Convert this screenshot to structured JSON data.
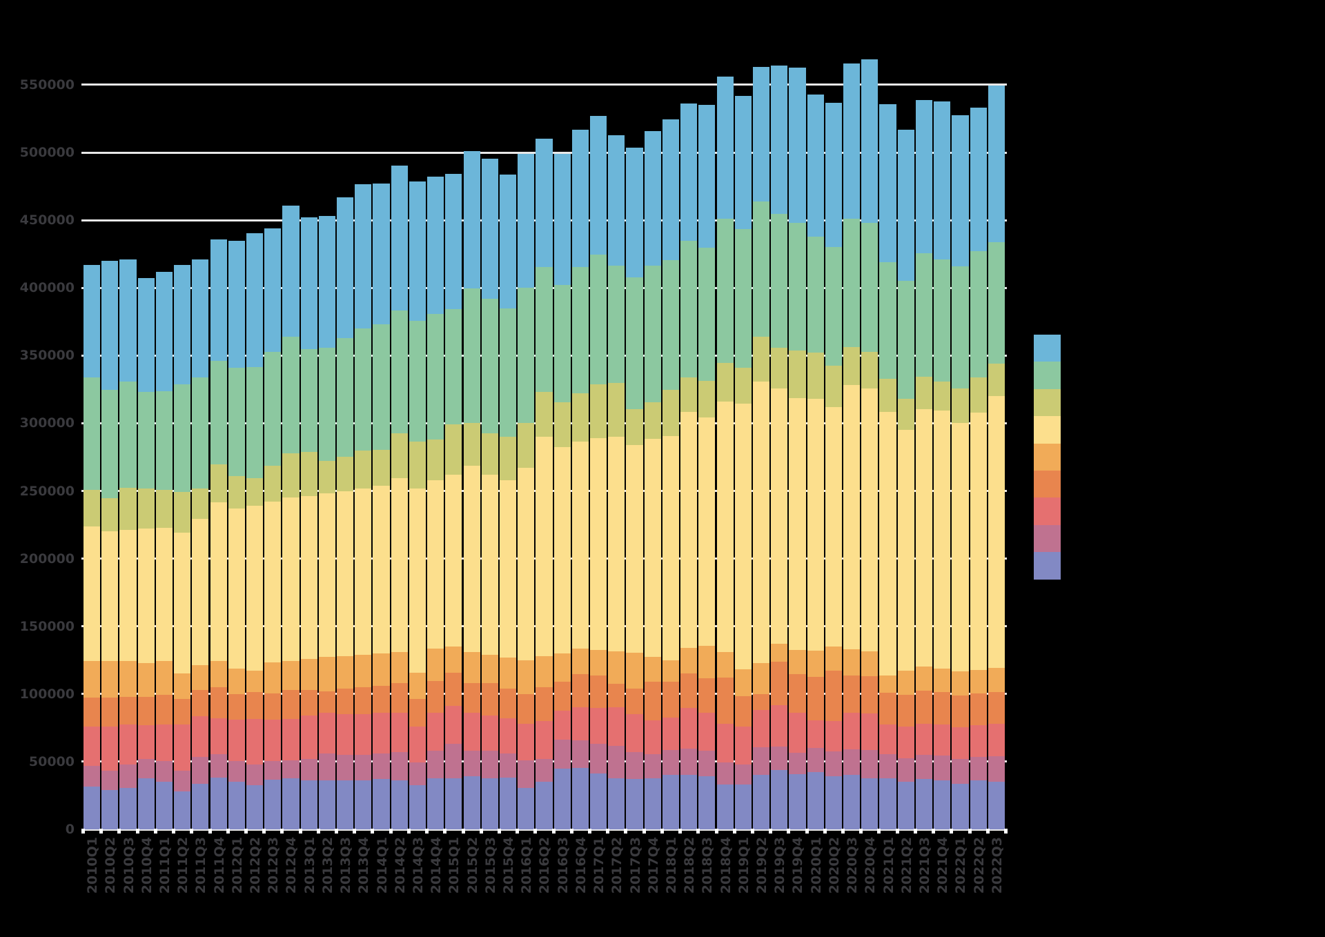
{
  "chart": {
    "title": "",
    "background_color": "#000000",
    "gridline_color": "#e8e8e8",
    "tick_label_color": "#3a3a3e",
    "axis_tick_color": "#ffffff",
    "legend": {
      "position": "right-center",
      "labels_visible": false,
      "swatch_order_top_to_bottom": [
        "blue",
        "green",
        "olive",
        "yellow",
        "orange",
        "dark-orange",
        "red",
        "mauve",
        "purple"
      ]
    }
  },
  "chart_data": {
    "type": "bar",
    "stacked": true,
    "title": "",
    "xlabel": "",
    "ylabel": "",
    "grid": "horizontal",
    "legend_position": "right-center",
    "legend_text_visible": false,
    "ylim": [
      0,
      577000
    ],
    "yticks": [
      0,
      50000,
      100000,
      150000,
      200000,
      250000,
      300000,
      350000,
      400000,
      450000,
      500000,
      550000
    ],
    "ytick_labels": [
      "0",
      "50000",
      "100000",
      "150000",
      "200000",
      "250000",
      "300000",
      "350000",
      "400000",
      "450000",
      "500000",
      "550000"
    ],
    "categories": [
      "2010Q1",
      "2010Q2",
      "2010Q3",
      "2010Q4",
      "2011Q1",
      "2011Q2",
      "2011Q3",
      "2011Q4",
      "2012Q1",
      "2012Q2",
      "2012Q3",
      "2012Q4",
      "2013Q1",
      "2013Q2",
      "2013Q3",
      "2013Q4",
      "2014Q1",
      "2014Q2",
      "2014Q3",
      "2014Q4",
      "2015Q1",
      "2015Q2",
      "2015Q3",
      "2015Q4",
      "2016Q1",
      "2016Q2",
      "2016Q3",
      "2016Q4",
      "2017Q1",
      "2017Q2",
      "2017Q3",
      "2017Q4",
      "2018Q1",
      "2018Q2",
      "2018Q3",
      "2018Q4",
      "2019Q1",
      "2019Q2",
      "2019Q3",
      "2019Q4",
      "2020Q1",
      "2020Q2",
      "2020Q3",
      "2020Q4",
      "2021Q1",
      "2021Q2",
      "2021Q3",
      "2021Q4",
      "2022Q1",
      "2022Q2",
      "2022Q3"
    ],
    "series_note": "series are unlabeled in the image (legend text not visible); names below are color identifiers, listed bottom-to-top of the stack",
    "series": [
      {
        "name": "series-1-purple",
        "color": "#8289c4",
        "values": [
          31600,
          29100,
          30700,
          37600,
          35000,
          28200,
          33500,
          38100,
          35000,
          32500,
          36700,
          37600,
          36000,
          36300,
          36000,
          36000,
          37000,
          36400,
          32500,
          37600,
          37900,
          39200,
          37500,
          38000,
          30700,
          35000,
          44900,
          45200,
          41400,
          37600,
          37000,
          37600,
          40100,
          40400,
          39200,
          33300,
          33000,
          40100,
          43800,
          40900,
          42100,
          39200,
          40100,
          37600,
          37600,
          35000,
          37000,
          36300,
          33600,
          36300,
          35300
        ]
      },
      {
        "name": "series-2-mauve",
        "color": "#bf7290",
        "values": [
          15300,
          14400,
          17100,
          14400,
          15500,
          15300,
          20200,
          17300,
          15300,
          15300,
          13600,
          13500,
          16000,
          19900,
          19000,
          19000,
          19000,
          20600,
          16900,
          20300,
          25100,
          18800,
          20500,
          18000,
          20300,
          17000,
          21500,
          20400,
          21600,
          24200,
          20100,
          17800,
          18300,
          19200,
          18700,
          16100,
          14800,
          20700,
          17500,
          15800,
          18000,
          18200,
          19000,
          20800,
          17800,
          17300,
          18000,
          18200,
          18400,
          17100,
          18700
        ]
      },
      {
        "name": "series-3-red",
        "color": "#e57070",
        "values": [
          28900,
          32300,
          29700,
          25000,
          27000,
          34000,
          29700,
          26600,
          30600,
          33900,
          30600,
          30600,
          32000,
          29800,
          30000,
          30000,
          30000,
          29000,
          26400,
          28100,
          28100,
          28000,
          26000,
          26000,
          27000,
          28000,
          21300,
          24600,
          26700,
          28400,
          28000,
          25100,
          24200,
          30100,
          28400,
          28400,
          28000,
          27200,
          30600,
          29600,
          20400,
          22600,
          27200,
          27200,
          22100,
          23800,
          22800,
          23000,
          23400,
          23700,
          23800
        ]
      },
      {
        "name": "series-4-dark-orange",
        "color": "#e8854e",
        "values": [
          21600,
          21500,
          20500,
          21000,
          22000,
          18700,
          19600,
          23000,
          19200,
          19600,
          19500,
          21300,
          19000,
          16100,
          19000,
          20000,
          20000,
          22100,
          20400,
          23800,
          24600,
          22000,
          24000,
          22000,
          22000,
          25000,
          21200,
          24300,
          23800,
          17400,
          18700,
          28400,
          26300,
          25500,
          25100,
          34200,
          22400,
          11900,
          31800,
          28200,
          32300,
          37400,
          27200,
          27600,
          23400,
          23100,
          24800,
          23800,
          23300,
          23300,
          23800
        ]
      },
      {
        "name": "series-5-orange",
        "color": "#f1ab58",
        "values": [
          26800,
          26900,
          26500,
          25000,
          24700,
          19000,
          18300,
          19200,
          18700,
          16100,
          22900,
          21200,
          23000,
          25500,
          24000,
          24000,
          24000,
          22900,
          19500,
          23700,
          19500,
          23000,
          21000,
          23000,
          25000,
          23000,
          21200,
          19000,
          19200,
          23800,
          26600,
          18700,
          16100,
          18700,
          24200,
          19000,
          20100,
          22900,
          13600,
          18200,
          19100,
          17800,
          19700,
          18300,
          12600,
          18200,
          17700,
          17300,
          17900,
          17500,
          17500
        ]
      },
      {
        "name": "series-6-yellow",
        "color": "#fcdf8d",
        "values": [
          99600,
          96000,
          96500,
          99000,
          98300,
          103800,
          108200,
          117200,
          118200,
          121600,
          118700,
          120800,
          120000,
          120400,
          122000,
          123000,
          124000,
          128300,
          136300,
          124500,
          126800,
          137600,
          133000,
          131000,
          142000,
          161900,
          152100,
          153000,
          156300,
          158500,
          153500,
          160900,
          165700,
          174700,
          168700,
          185200,
          196200,
          207900,
          188600,
          185700,
          186100,
          176700,
          194900,
          194100,
          194700,
          177600,
          190000,
          190800,
          183400,
          189800,
          200900
        ]
      },
      {
        "name": "series-7-olive",
        "color": "#cbcb74",
        "values": [
          27000,
          24600,
          31400,
          29600,
          28300,
          30100,
          22100,
          28100,
          24000,
          20300,
          26600,
          33000,
          32800,
          24000,
          25400,
          27700,
          26500,
          33100,
          34500,
          30200,
          37200,
          31800,
          30400,
          31900,
          33100,
          33100,
          33200,
          35600,
          39900,
          39900,
          26400,
          26900,
          34000,
          25500,
          27200,
          28400,
          26300,
          33100,
          29900,
          35200,
          34400,
          30600,
          28300,
          27100,
          24500,
          22900,
          24100,
          21600,
          25900,
          26400,
          24200
        ]
      },
      {
        "name": "series-8-green",
        "color": "#8cc8a0",
        "values": [
          83200,
          79900,
          78300,
          71400,
          72700,
          79900,
          82400,
          76800,
          79800,
          82400,
          84100,
          86000,
          76200,
          83800,
          87500,
          90300,
          92600,
          90900,
          89100,
          92500,
          84900,
          99000,
          99400,
          95100,
          100200,
          92600,
          86600,
          93500,
          95500,
          86600,
          97600,
          101000,
          96000,
          100500,
          98000,
          106700,
          102800,
          100200,
          98900,
          94600,
          85300,
          87500,
          94500,
          95200,
          86300,
          87200,
          91000,
          90000,
          90000,
          93000,
          89800
        ]
      },
      {
        "name": "series-9-blue",
        "color": "#6cb6d9",
        "values": [
          83000,
          95300,
          90500,
          84300,
          88300,
          87900,
          87200,
          89700,
          94000,
          98500,
          91400,
          96600,
          97000,
          97200,
          104000,
          106700,
          104200,
          107000,
          103200,
          101700,
          100300,
          101600,
          103600,
          98900,
          98900,
          94400,
          96900,
          101100,
          102500,
          96400,
          95500,
          99400,
          103600,
          101600,
          105800,
          104700,
          98000,
          99000,
          109500,
          114400,
          105000,
          106600,
          115000,
          120900,
          116900,
          111600,
          113400,
          116900,
          111500,
          106100,
          115300
        ]
      }
    ]
  }
}
